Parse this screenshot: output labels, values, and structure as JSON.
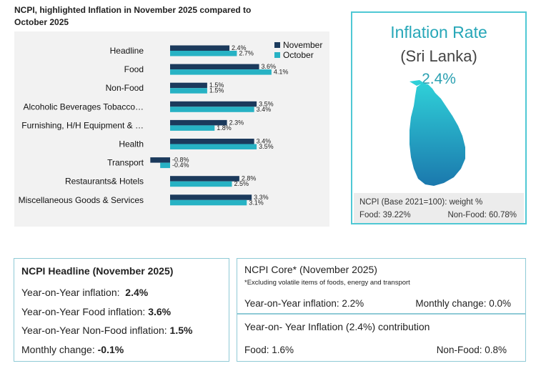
{
  "chart_title": "NCPI, highlighted Inflation in November 2025 compared to October 2025",
  "colors": {
    "november": "#1b3a5c",
    "october": "#27b2c4",
    "accent": "#4fc8d4"
  },
  "chart_data": {
    "type": "bar",
    "orientation": "horizontal",
    "title": "NCPI, highlighted Inflation in November 2025 compared to October 2025",
    "categories": [
      "Headline",
      "Food",
      "Non-Food",
      "Alcoholic Beverages Tobacco…",
      "Furnishing, H/H Equipment & …",
      "Health",
      "Transport",
      "Restaurants& Hotels",
      "Miscellaneous Goods & Services"
    ],
    "series": [
      {
        "name": "November",
        "values": [
          2.4,
          3.6,
          1.5,
          3.5,
          2.3,
          3.4,
          -0.8,
          2.8,
          3.3
        ],
        "labels": [
          "2.4%",
          "3.6%",
          "1.5%",
          "3.5%",
          "2.3%",
          "3.4%",
          "-0.8%",
          "2.8%",
          "3.3%"
        ]
      },
      {
        "name": "October",
        "values": [
          2.7,
          4.1,
          1.5,
          3.4,
          1.8,
          3.5,
          -0.4,
          2.5,
          3.1
        ],
        "labels": [
          "2.7%",
          "4.1%",
          "1.5%",
          "3.4%",
          "1.8%",
          "3.5%",
          "-0.4%",
          "2.5%",
          "3.1%"
        ]
      }
    ],
    "legend": [
      "November",
      "October"
    ],
    "legend_position": "top-right",
    "xlim": [
      -0.8,
      4.1
    ],
    "grid": false
  },
  "inflation_card": {
    "title": "Inflation Rate",
    "country": "(Sri Lanka)",
    "value": "2.4%",
    "weights_title": "NCPI (Base 2021=100): weight %",
    "food_weight": "Food: 39.22%",
    "nonfood_weight": "Non-Food: 60.78%"
  },
  "headline": {
    "title": "NCPI Headline (November 2025)",
    "yoy_label": "Year-on-Year inflation:  ",
    "yoy_value": "2.4%",
    "food_label": "Year-on-Year Food inflation: ",
    "food_value": "3.6%",
    "nonfood_label": "Year-on-Year Non-Food inflation: ",
    "nonfood_value": "1.5%",
    "monthly_label": "Monthly change: ",
    "monthly_value": "-0.1%"
  },
  "core": {
    "title": "NCPI Core* (November 2025)",
    "note": "*Excluding volatile items of foods, energy and transport",
    "yoy": "Year-on-Year inflation: 2.2%",
    "monthly": "Monthly change: 0.0%"
  },
  "contribution": {
    "title": "Year-on- Year Inflation (2.4%) contribution",
    "food": "Food: 1.6%",
    "nonfood": "Non-Food: 0.8%"
  }
}
